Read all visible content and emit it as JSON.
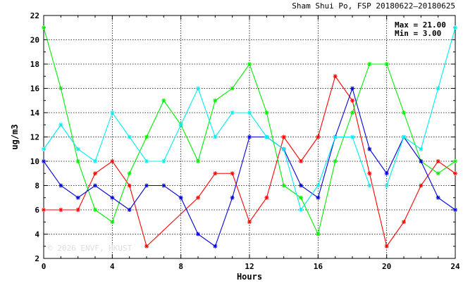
{
  "chart_data": {
    "type": "line",
    "title": "Sham Shui Po, FSP 20180622–20180625",
    "xlabel": "Hours",
    "ylabel": "ug/m3",
    "xlim": [
      0,
      24
    ],
    "ylim": [
      2,
      22
    ],
    "xticks": [
      0,
      4,
      8,
      12,
      16,
      20,
      24
    ],
    "yticks": [
      2,
      4,
      6,
      8,
      10,
      12,
      14,
      16,
      18,
      20,
      22
    ],
    "grid": true,
    "stats": {
      "max_label": "Max = 21.00",
      "min_label": "Min =  3.00"
    },
    "watermark": "© 2026  ENVF, HKUST",
    "x": [
      0,
      1,
      2,
      3,
      4,
      5,
      6,
      7,
      8,
      9,
      10,
      11,
      12,
      13,
      14,
      15,
      16,
      17,
      18,
      19,
      20,
      21,
      22,
      23,
      24
    ],
    "series": [
      {
        "color": "#ff0000",
        "values": [
          6,
          6,
          6,
          9,
          10,
          8,
          3,
          null,
          null,
          7,
          9,
          9,
          5,
          7,
          12,
          10,
          12,
          17,
          15,
          9,
          3,
          5,
          8,
          10,
          9
        ]
      },
      {
        "color": "#00ee00",
        "values": [
          21,
          16,
          10,
          6,
          5,
          9,
          12,
          15,
          13,
          10,
          15,
          16,
          18,
          14,
          8,
          7,
          4,
          10,
          14,
          18,
          18,
          14,
          10,
          9,
          10
        ]
      },
      {
        "color": "#0000dd",
        "values": [
          10,
          8,
          7,
          8,
          7,
          6,
          8,
          8,
          7,
          4,
          3,
          7,
          12,
          12,
          11,
          8,
          7,
          12,
          16,
          11,
          9,
          12,
          10,
          7,
          6
        ]
      },
      {
        "color": "#00eeee",
        "values": [
          11,
          13,
          11,
          10,
          14,
          12,
          10,
          10,
          13,
          16,
          12,
          14,
          14,
          12,
          11,
          6,
          8,
          12,
          12,
          8,
          8,
          12,
          11,
          16,
          21
        ]
      }
    ]
  }
}
